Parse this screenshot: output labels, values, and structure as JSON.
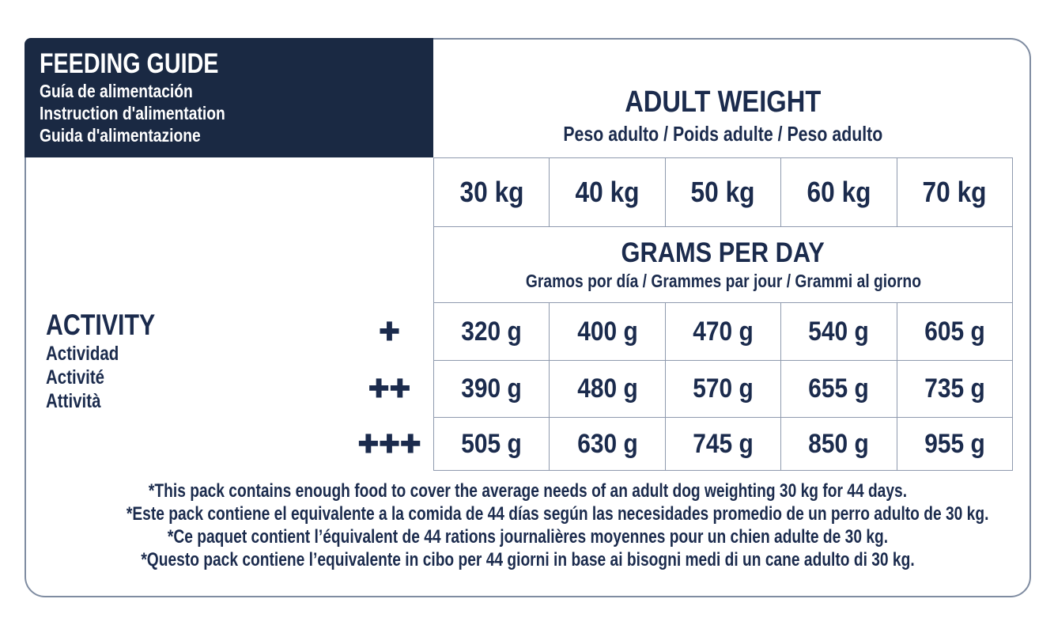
{
  "colors": {
    "navy_text": "#1b2b4d",
    "navy_box_bg": "#1a2943",
    "grid_line": "#8f9aae",
    "outer_border": "#7f8ca1",
    "background": "#ffffff"
  },
  "feeding_guide": {
    "title": "FEEDING GUIDE",
    "subtitles": [
      "Guía de alimentación",
      "Instruction d'alimentation",
      "Guida d'alimentazione"
    ]
  },
  "adult_weight": {
    "title": "ADULT WEIGHT",
    "subtitle": "Peso adulto / Poids adulte / Peso adulto"
  },
  "weights": [
    "30 kg",
    "40 kg",
    "50 kg",
    "60 kg",
    "70 kg"
  ],
  "grams_per_day": {
    "title": "GRAMS PER DAY",
    "subtitle": "Gramos por día / Grammes par jour / Grammi al giorno"
  },
  "activity": {
    "title": "ACTIVITY",
    "subtitles": [
      "Actividad",
      "Activité",
      "Attività"
    ]
  },
  "rows": [
    {
      "level": "+",
      "values": [
        "320 g",
        "400 g",
        "470 g",
        "540 g",
        "605 g"
      ]
    },
    {
      "level": "++",
      "values": [
        "390 g",
        "480 g",
        "570 g",
        "655 g",
        "735 g"
      ]
    },
    {
      "level": "+++",
      "values": [
        "505 g",
        "630 g",
        "745 g",
        "850 g",
        "955 g"
      ]
    }
  ],
  "footnotes": [
    "*This pack contains enough food to cover the average needs of an adult dog weighting 30 kg for 44 days.",
    "*Este pack contiene el equivalente a la comida de 44 días según las necesidades promedio de un perro adulto de 30 kg.",
    "*Ce paquet contient l’équivalent de 44 rations journalières moyennes pour un chien adulte de 30 kg.",
    "*Questo pack contiene l’equivalente in cibo per 44 giorni in base ai bisogni medi di un cane adulto di 30 kg."
  ]
}
